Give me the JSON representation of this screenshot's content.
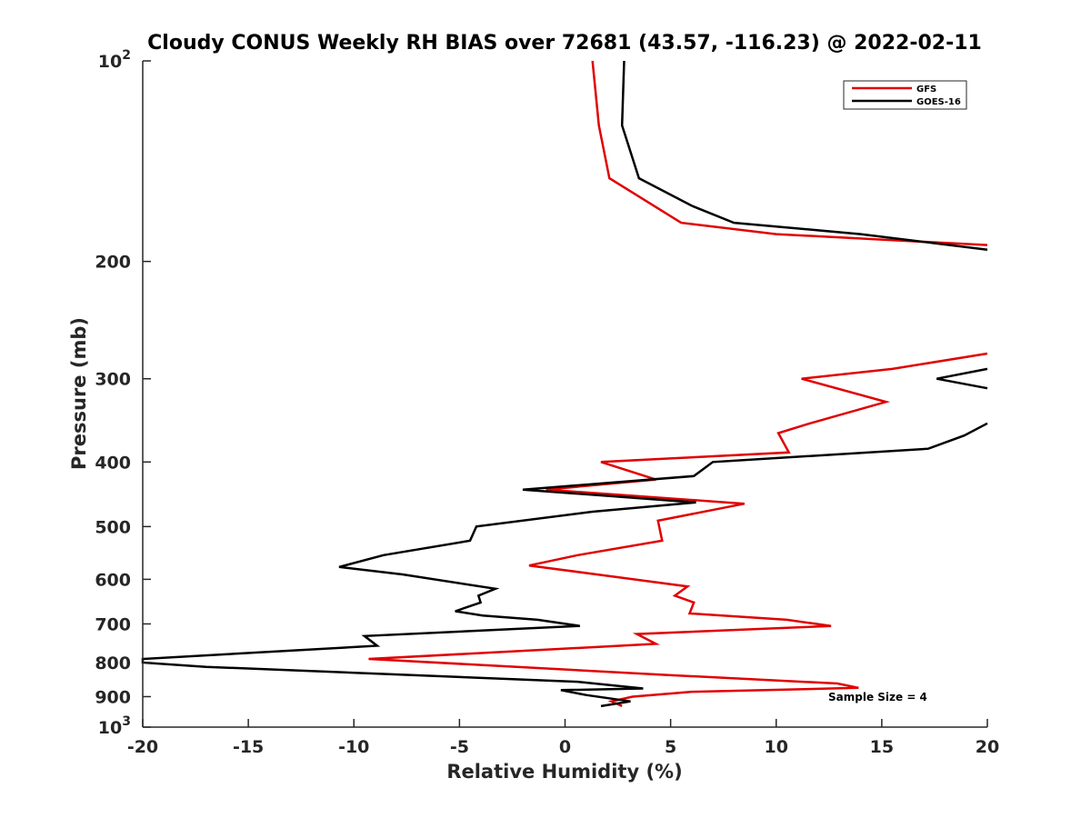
{
  "chart_data": {
    "type": "line",
    "title": "Cloudy CONUS Weekly RH BIAS over 72681 (43.57, -116.23) @ 2022-02-11",
    "xlabel": "Relative Humidity (%)",
    "ylabel": "Pressure (mb)",
    "xlim": [
      -20,
      20
    ],
    "ylim": [
      100,
      1000
    ],
    "y_scale": "log",
    "y_reversed": true,
    "grid": false,
    "legend_position": "top-right",
    "x_ticks": [
      -20,
      -15,
      -10,
      -5,
      0,
      5,
      10,
      15,
      20
    ],
    "y_ticks": [
      {
        "value": 100,
        "base": "10",
        "exp": "2"
      },
      {
        "value": 200,
        "label": "200"
      },
      {
        "value": 300,
        "label": "300"
      },
      {
        "value": 400,
        "label": "400"
      },
      {
        "value": 500,
        "label": "500"
      },
      {
        "value": 600,
        "label": "600"
      },
      {
        "value": 700,
        "label": "700"
      },
      {
        "value": 800,
        "label": "800"
      },
      {
        "value": 900,
        "label": "900"
      },
      {
        "value": 1000,
        "base": "10",
        "exp": "3"
      }
    ],
    "annotation": "Sample Size = 4",
    "series": [
      {
        "name": "GFS",
        "color": "#e00000",
        "segments": [
          [
            [
              1.3,
              100
            ],
            [
              1.6,
              125
            ],
            [
              2.1,
              150
            ],
            [
              5.5,
              175
            ],
            [
              10,
              182
            ],
            [
              17.2,
              187
            ],
            [
              20,
              189
            ]
          ],
          [
            [
              20,
              275
            ],
            [
              15.5,
              290
            ],
            [
              11.2,
              300
            ],
            [
              15.2,
              325
            ],
            [
              11.6,
              350
            ],
            [
              10.1,
              362
            ],
            [
              10.6,
              387
            ],
            [
              5.1,
              395
            ],
            [
              1.7,
              400
            ],
            [
              4.3,
              425
            ],
            [
              -0.9,
              440
            ],
            [
              8.5,
              462
            ],
            [
              4.4,
              490
            ],
            [
              4.6,
              525
            ],
            [
              0.6,
              552
            ],
            [
              -1.7,
              572
            ],
            [
              1.5,
              590
            ],
            [
              5.8,
              615
            ],
            [
              5.2,
              635
            ],
            [
              6.1,
              650
            ],
            [
              5.9,
              675
            ],
            [
              10.5,
              690
            ],
            [
              12.6,
              705
            ],
            [
              3.4,
              725
            ],
            [
              4.3,
              750
            ],
            [
              -9.3,
              790
            ],
            [
              4.8,
              835
            ],
            [
              12.9,
              860
            ],
            [
              13.9,
              873
            ],
            [
              6.0,
              885
            ],
            [
              3.2,
              900
            ],
            [
              2.2,
              915
            ],
            [
              2.7,
              930
            ]
          ]
        ]
      },
      {
        "name": "GOES-16",
        "color": "#000000",
        "segments": [
          [
            [
              2.8,
              100
            ],
            [
              2.7,
              125
            ],
            [
              3.5,
              150
            ],
            [
              6.0,
              165
            ],
            [
              8.0,
              175
            ],
            [
              14,
              182
            ],
            [
              20,
              192
            ]
          ],
          [
            [
              20,
              290
            ],
            [
              17.6,
              300
            ],
            [
              20,
              310
            ]
          ],
          [
            [
              20,
              350
            ],
            [
              18.9,
              365
            ],
            [
              17.2,
              382
            ],
            [
              7.0,
              400
            ],
            [
              6.1,
              420
            ],
            [
              -2.0,
              440
            ],
            [
              6.2,
              460
            ],
            [
              1.3,
              475
            ],
            [
              -4.2,
              500
            ],
            [
              -4.5,
              525
            ],
            [
              -8.6,
              552
            ],
            [
              -10.7,
              575
            ],
            [
              -7.7,
              590
            ],
            [
              -3.3,
              620
            ],
            [
              -4.1,
              635
            ],
            [
              -4.0,
              650
            ],
            [
              -5.2,
              670
            ],
            [
              -3.9,
              680
            ],
            [
              -1.3,
              690
            ],
            [
              0.7,
              705
            ],
            [
              -9.5,
              730
            ],
            [
              -8.9,
              755
            ],
            [
              -20,
              790
            ],
            [
              -20,
              800
            ],
            [
              -17,
              812
            ],
            [
              0.6,
              855
            ],
            [
              3.7,
              875
            ],
            [
              -0.2,
              880
            ],
            [
              1.0,
              895
            ],
            [
              3.1,
              915
            ],
            [
              1.7,
              930
            ]
          ]
        ]
      }
    ]
  }
}
